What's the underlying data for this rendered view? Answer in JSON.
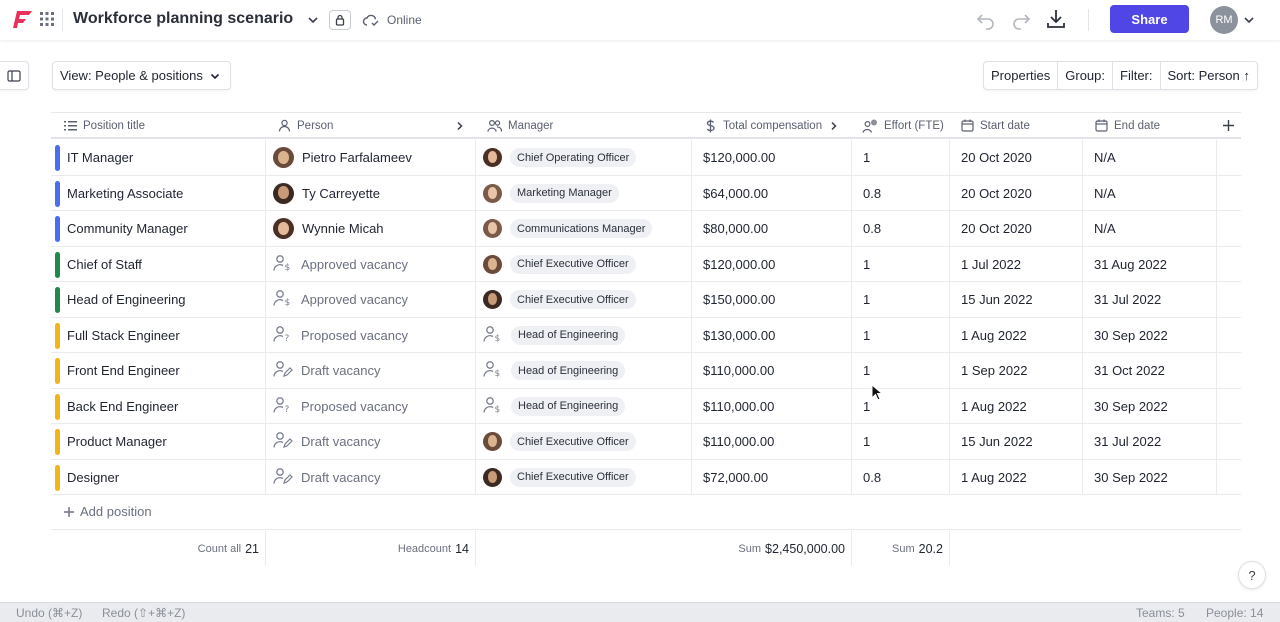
{
  "app": {
    "title": "Workforce planning scenario",
    "status": "Online",
    "share_label": "Share",
    "user_initials": "RM",
    "accent": "#5046e5"
  },
  "toolbar": {
    "view_label": "View: People & positions",
    "properties_label": "Properties",
    "group_label": "Group:",
    "filter_label": "Filter:",
    "sort_label": "Sort: Person ↑"
  },
  "table": {
    "columns": [
      {
        "label": "Position title",
        "icon": "list-icon"
      },
      {
        "label": "Person",
        "icon": "person-icon"
      },
      {
        "label": "Manager",
        "icon": "people-icon"
      },
      {
        "label": "Total compensation",
        "icon": "dollar-icon"
      },
      {
        "label": "Effort (FTE)",
        "icon": "person-clock-icon"
      },
      {
        "label": "Start date",
        "icon": "calendar-icon"
      },
      {
        "label": "End date",
        "icon": "calendar-icon"
      }
    ],
    "rows": [
      {
        "title": "IT Manager",
        "color": "#4a6cf0",
        "person": "Pietro Farfalameev",
        "person_type": "person",
        "manager": "Chief Operating Officer",
        "manager_type": "person",
        "comp": "$120,000.00",
        "fte": "1",
        "start": "20 Oct 2020",
        "end": "N/A"
      },
      {
        "title": "Marketing Associate",
        "color": "#4a6cf0",
        "person": "Ty Carreyette",
        "person_type": "person",
        "manager": "Marketing Manager",
        "manager_type": "person",
        "comp": "$64,000.00",
        "fte": "0.8",
        "start": "20 Oct 2020",
        "end": "N/A"
      },
      {
        "title": "Community Manager",
        "color": "#4a6cf0",
        "person": "Wynnie Micah",
        "person_type": "person",
        "manager": "Communications Manager",
        "manager_type": "person",
        "comp": "$80,000.00",
        "fte": "0.8",
        "start": "20 Oct 2020",
        "end": "N/A"
      },
      {
        "title": "Chief of Staff",
        "color": "#1f8a4c",
        "person": "Approved vacancy",
        "person_type": "approved",
        "manager": "Chief Executive Officer",
        "manager_type": "person",
        "comp": "$120,000.00",
        "fte": "1",
        "start": "1 Jul 2022",
        "end": "31 Aug 2022"
      },
      {
        "title": "Head of Engineering",
        "color": "#1f8a4c",
        "person": "Approved vacancy",
        "person_type": "approved",
        "manager": "Chief Executive Officer",
        "manager_type": "person",
        "comp": "$150,000.00",
        "fte": "1",
        "start": "15 Jun 2022",
        "end": "31 Jul 2022"
      },
      {
        "title": "Full Stack Engineer",
        "color": "#f2b417",
        "person": "Proposed vacancy",
        "person_type": "proposed",
        "manager": "Head of Engineering",
        "manager_type": "vacancy",
        "comp": "$130,000.00",
        "fte": "1",
        "start": "1 Aug 2022",
        "end": "30 Sep 2022"
      },
      {
        "title": "Front End Engineer",
        "color": "#f2b417",
        "person": "Draft vacancy",
        "person_type": "draft",
        "manager": "Head of Engineering",
        "manager_type": "vacancy",
        "comp": "$110,000.00",
        "fte": "1",
        "start": "1 Sep 2022",
        "end": "31 Oct 2022"
      },
      {
        "title": "Back End Engineer",
        "color": "#f2b417",
        "person": "Proposed vacancy",
        "person_type": "proposed",
        "manager": "Head of Engineering",
        "manager_type": "vacancy",
        "comp": "$110,000.00",
        "fte": "1",
        "start": "1 Aug 2022",
        "end": "30 Sep 2022"
      },
      {
        "title": "Product Manager",
        "color": "#f2b417",
        "person": "Draft vacancy",
        "person_type": "draft",
        "manager": "Chief Executive Officer",
        "manager_type": "person",
        "comp": "$110,000.00",
        "fte": "1",
        "start": "15 Jun 2022",
        "end": "31 Jul 2022"
      },
      {
        "title": "Designer",
        "color": "#f2b417",
        "person": "Draft vacancy",
        "person_type": "draft",
        "manager": "Chief Executive Officer",
        "manager_type": "person",
        "comp": "$72,000.00",
        "fte": "0.8",
        "start": "1 Aug 2022",
        "end": "30 Sep 2022"
      }
    ],
    "add_label": "Add position",
    "footer": {
      "count_label": "Count all",
      "count_value": "21",
      "headcount_label": "Headcount",
      "headcount_value": "14",
      "comp_label": "Sum",
      "comp_value": "$2,450,000.00",
      "fte_label": "Sum",
      "fte_value": "20.2"
    }
  },
  "statusbar": {
    "undo": "Undo (⌘+Z)",
    "redo": "Redo (⇧+⌘+Z)",
    "teams": "Teams: 5",
    "people": "People: 14"
  },
  "help_label": "?"
}
